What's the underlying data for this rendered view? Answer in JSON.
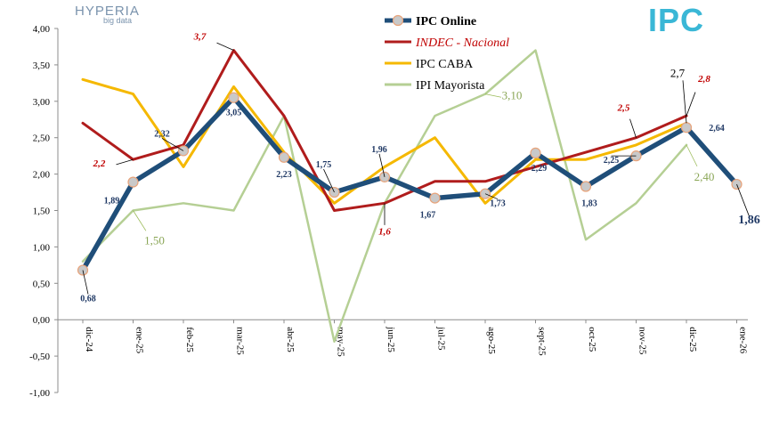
{
  "logos": {
    "left_name": "HYPERIA",
    "left_sub": "big data",
    "right": "IPC"
  },
  "chart_data": {
    "type": "line",
    "categories": [
      "dic-24",
      "ene-25",
      "feb-25",
      "mar-25",
      "abr-25",
      "may-25",
      "jun-25",
      "jul-25",
      "ago-25",
      "sept-25",
      "oct-25",
      "nov-25",
      "dic-25",
      "ene-26"
    ],
    "ylim": [
      -1.0,
      4.0
    ],
    "yticks": [
      "4,00",
      "3,50",
      "3,00",
      "2,50",
      "2,00",
      "1,50",
      "1,00",
      "0,50",
      "0,00",
      "-0,50",
      "-1,00"
    ],
    "grid": false,
    "legend_position": "top-center",
    "series": [
      {
        "name": "IPC Online",
        "color": "#1f4e79",
        "values": [
          0.68,
          1.89,
          2.32,
          3.05,
          2.23,
          1.75,
          1.96,
          1.67,
          1.73,
          2.29,
          1.83,
          2.25,
          2.64,
          1.86
        ]
      },
      {
        "name": "INDEC - Nacional",
        "color": "#b01c1c",
        "values": [
          2.7,
          2.2,
          2.4,
          3.7,
          2.8,
          1.5,
          1.6,
          1.9,
          1.9,
          2.1,
          2.3,
          2.5,
          2.8,
          null
        ]
      },
      {
        "name": "IPC CABA",
        "color": "#f5b800",
        "values": [
          3.3,
          3.1,
          2.1,
          3.2,
          2.3,
          1.6,
          2.1,
          2.5,
          1.6,
          2.2,
          2.2,
          2.4,
          2.7,
          null
        ]
      },
      {
        "name": "IPI Mayorista",
        "color": "#b5cf94",
        "values": [
          0.8,
          1.5,
          1.6,
          1.5,
          2.8,
          -0.3,
          1.6,
          2.8,
          3.1,
          3.7,
          1.1,
          1.6,
          2.4,
          null
        ]
      }
    ],
    "labels_online": [
      "0,68",
      "1,89",
      "2,32",
      "3,05",
      "2,23",
      "1,75",
      "1,96",
      "1,67",
      "1,73",
      "2,29",
      "1,83",
      "2,25",
      "2,64",
      "1,86"
    ],
    "labels_indec": [
      {
        "i": 1,
        "text": "2,2"
      },
      {
        "i": 3,
        "text": "3,7"
      },
      {
        "i": 6,
        "text": "1,6"
      },
      {
        "i": 11,
        "text": "2,5"
      },
      {
        "i": 12,
        "text": "2,8"
      }
    ],
    "labels_caba": [
      {
        "i": 12,
        "text": "2,7"
      }
    ],
    "labels_ipi": [
      {
        "i": 1,
        "text": "1,50"
      },
      {
        "i": 8,
        "text": "3,10"
      },
      {
        "i": 12,
        "text": "2,40"
      }
    ]
  }
}
